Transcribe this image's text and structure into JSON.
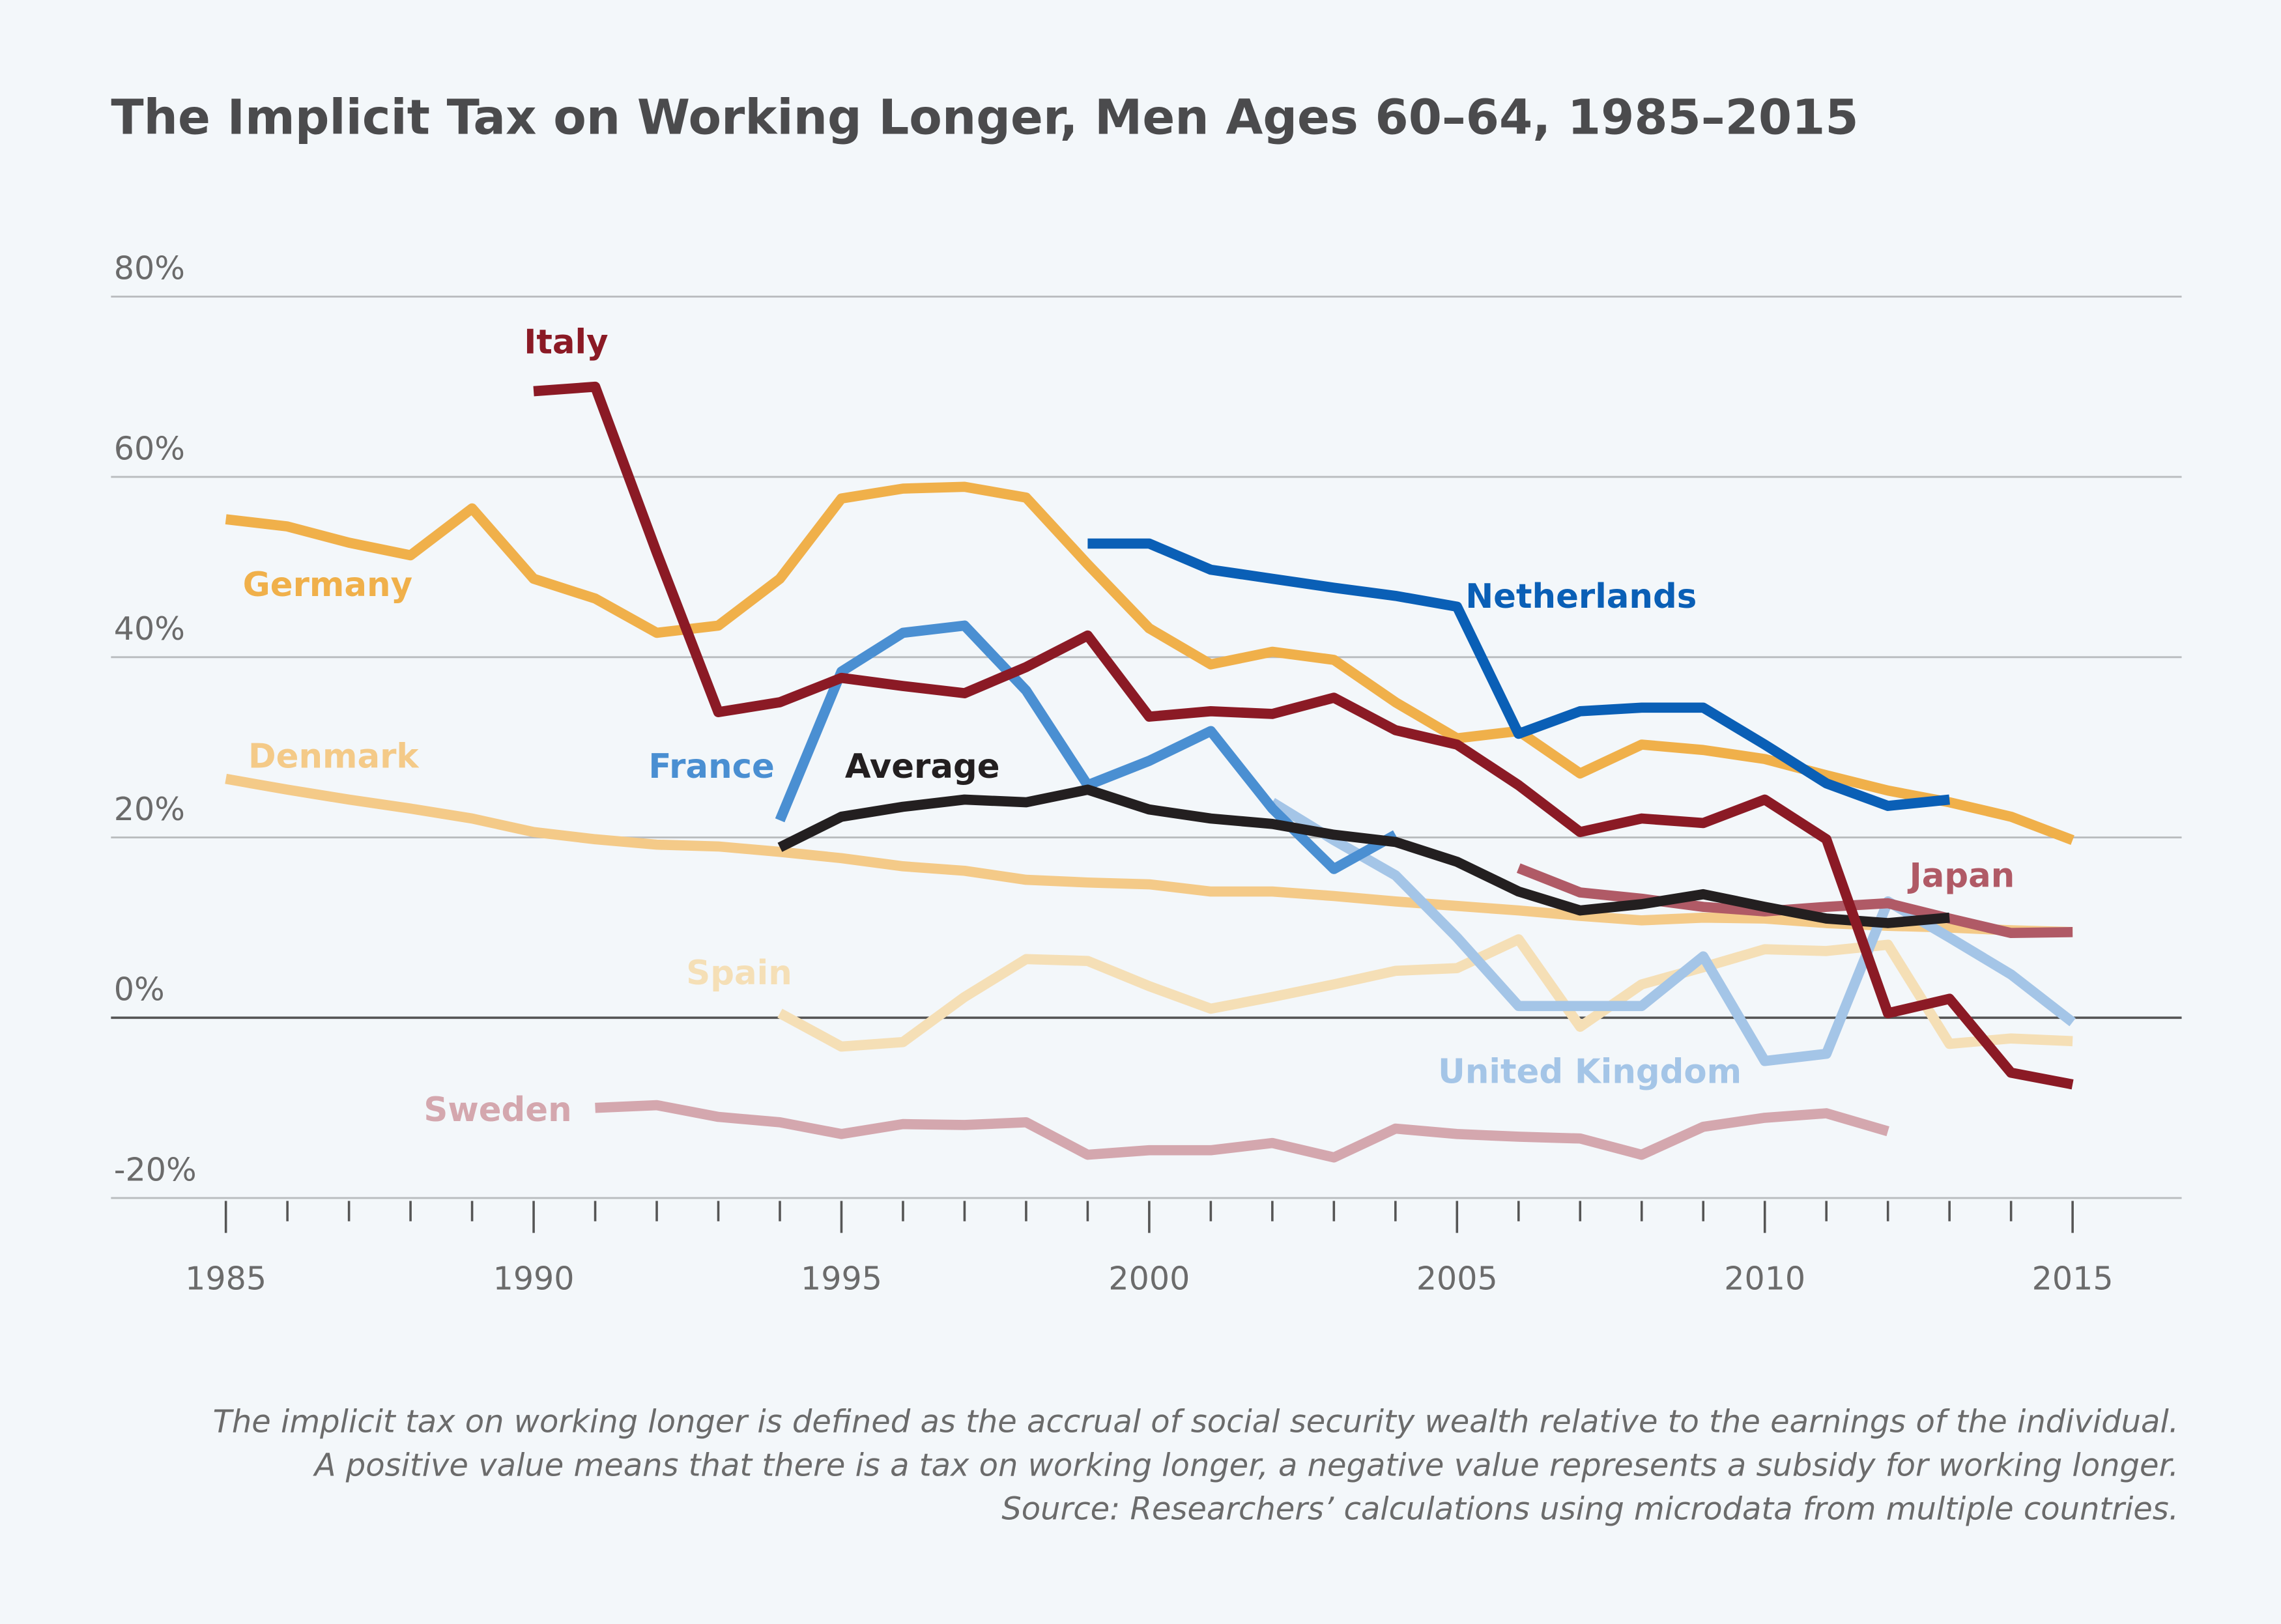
{
  "chart_data": {
    "type": "line",
    "title": "The Implicit Tax on Working Longer, Men Ages 60–64, 1985–2015",
    "xlabel": "",
    "ylabel": "",
    "xlim": [
      1985,
      2015
    ],
    "ylim": [
      -20,
      80
    ],
    "x_ticks": [
      "1985",
      "1990",
      "1995",
      "2000",
      "2005",
      "2010",
      "2015"
    ],
    "y_ticks": [
      "80%",
      "60%",
      "40%",
      "20%",
      "0%",
      "-20%"
    ],
    "grid": true,
    "series": [
      {
        "name": "Sweden",
        "color": "#d4a7ae",
        "start": 1991,
        "values": [
          -10,
          -9.7,
          -11,
          -11.6,
          -12.9,
          -11.8,
          -11.9,
          -11.6,
          -15.2,
          -14.7,
          -14.7,
          -13.9,
          -15.5,
          -12.3,
          -12.9,
          -13.2,
          -13.4,
          -15.2,
          -12.1,
          -11.1,
          -10.6,
          -12.6
        ]
      },
      {
        "name": "Spain",
        "color": "#f5dfb6",
        "start": 1994,
        "values": [
          0.5,
          -3.2,
          -2.7,
          2.3,
          6.5,
          6.3,
          3.5,
          1,
          2.3,
          3.7,
          5.2,
          5.5,
          8.7,
          -1,
          3.7,
          5.6,
          7.6,
          7.4,
          8.1,
          -2.9,
          -2.3,
          -2.6
        ]
      },
      {
        "name": "Denmark",
        "color": "#f4ca88",
        "start": 1985,
        "values": [
          26.5,
          25.3,
          24.2,
          23.2,
          22.1,
          20.6,
          19.8,
          19.2,
          19,
          18.4,
          17.7,
          16.8,
          16.3,
          15.3,
          15,
          14.8,
          14,
          14,
          13.5,
          12.9,
          12.4,
          11.9,
          11.3,
          10.8,
          11.1,
          11,
          10.5,
          10.2,
          10,
          9.7,
          9.5
        ]
      },
      {
        "name": "United Kingdom",
        "color": "#a4c5e7",
        "start": 2002,
        "values": [
          23.9,
          19.7,
          15.8,
          8.9,
          1.3,
          1.3,
          1.3,
          6.8,
          -4.8,
          -4,
          12.9,
          8.9,
          4.8,
          -0.5
        ]
      },
      {
        "name": "Japan",
        "color": "#b05a66",
        "start": 2006,
        "values": [
          16.6,
          13.9,
          13.2,
          12.3,
          11.8,
          12.3,
          12.7,
          11,
          9.4,
          9.5
        ]
      },
      {
        "name": "France",
        "color": "#4a8fd2",
        "start": 1994,
        "values": [
          21.9,
          38.4,
          42.7,
          43.5,
          36.3,
          25.8,
          28.5,
          31.8,
          23.2,
          16.5,
          20.3
        ]
      },
      {
        "name": "Germany",
        "color": "#f0b04a",
        "start": 1985,
        "values": [
          55.3,
          54.5,
          52.7,
          51.3,
          56.5,
          48.7,
          46.5,
          42.7,
          43.5,
          48.7,
          57.6,
          58.7,
          58.9,
          57.7,
          50.3,
          43.2,
          39.2,
          40.6,
          39.7,
          35,
          31,
          31.8,
          27.1,
          30.3,
          29.7,
          28.7,
          26.9,
          25.2,
          23.9,
          22.3,
          19.7
        ]
      },
      {
        "name": "Netherlands",
        "color": "#0a5fb6",
        "start": 1999,
        "values": [
          52.6,
          52.6,
          49.7,
          48.7,
          47.7,
          46.8,
          45.6,
          31.5,
          34,
          34.4,
          34.4,
          30.3,
          26,
          23.5,
          24.2
        ]
      },
      {
        "name": "Average",
        "color": "#231f20",
        "start": 1994,
        "values": [
          18.9,
          22.3,
          23.4,
          24.2,
          23.9,
          25.3,
          23.1,
          22.1,
          21.5,
          20.3,
          19.5,
          17.3,
          14,
          11.9,
          12.6,
          13.7,
          12.3,
          11,
          10.5,
          11.1
        ]
      },
      {
        "name": "Italy",
        "color": "#8b1a25",
        "start": 1990,
        "values": [
          69.5,
          70,
          51.6,
          33.9,
          35,
          37.7,
          36.8,
          36,
          38.9,
          42.4,
          33.4,
          34,
          33.7,
          35.5,
          31.9,
          30.3,
          25.8,
          20.6,
          22.1,
          21.6,
          24.2,
          19.8,
          0.5,
          2.1,
          -6.1,
          -7.4
        ]
      }
    ],
    "notes": [
      "The implicit tax on working longer is defined as the accrual of social security wealth relative to the earnings of the individual.",
      "A positive value means that there is a tax on working longer, a negative value represents a subsidy for working longer.",
      "Source: Researchers’ calculations using microdata from multiple countries."
    ]
  },
  "colors": {
    "background": "#f3f7fa",
    "grid": "#b9bcbf",
    "zero_line": "#555555"
  }
}
